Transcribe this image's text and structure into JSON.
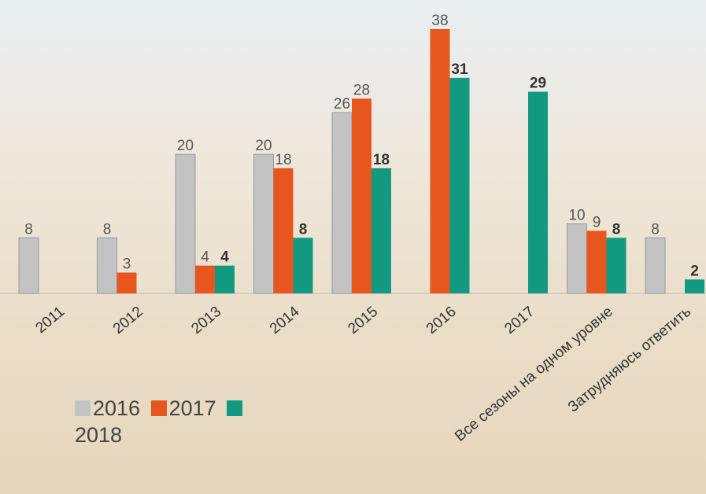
{
  "chart_data": {
    "type": "bar",
    "categories": [
      "2011",
      "2012",
      "2013",
      "2014",
      "2015",
      "2016",
      "2017",
      "Все сезоны на одном уровне",
      "Затрудняюсь ответить"
    ],
    "series": [
      {
        "name": "2016",
        "color": "#c3c3c3",
        "values": [
          8,
          8,
          20,
          20,
          26,
          null,
          null,
          10,
          8
        ]
      },
      {
        "name": "2017",
        "color": "#e8561f",
        "values": [
          null,
          3,
          4,
          18,
          28,
          38,
          null,
          9,
          null
        ]
      },
      {
        "name": "2018",
        "color": "#129a80",
        "values": [
          null,
          null,
          4,
          8,
          18,
          31,
          29,
          8,
          2
        ]
      }
    ],
    "legend": "bottom-left"
  }
}
